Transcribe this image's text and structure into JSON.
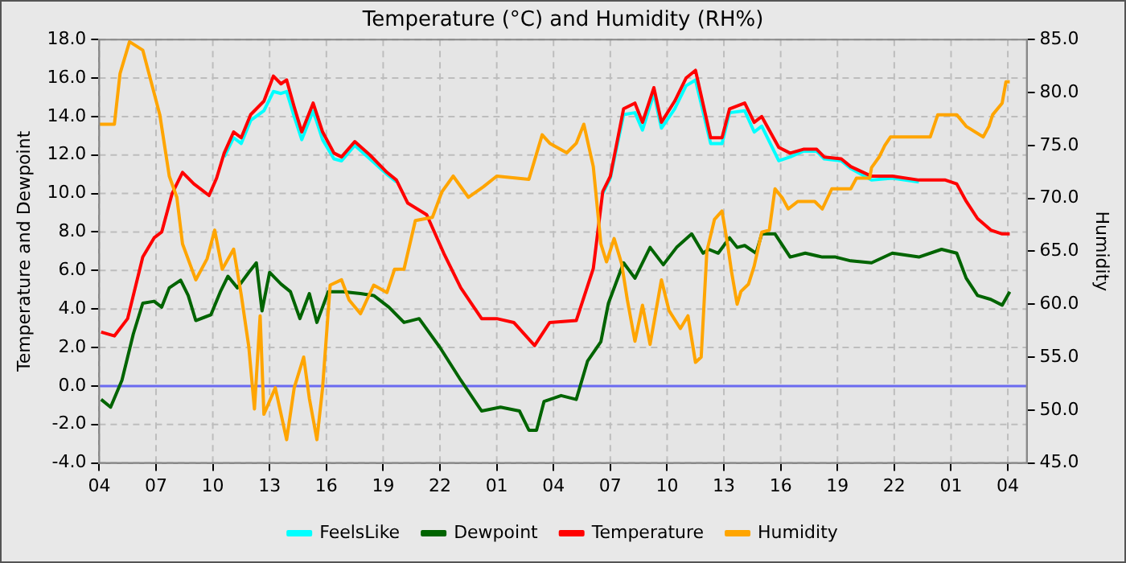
{
  "chart_data": {
    "type": "line",
    "title": "Temperature (°C) and Humidity (RH%)",
    "ylabel": "Temperature and Dewpoint",
    "y2label": "Humidity",
    "xlim": [
      "--01-01T04:00",
      "--01-03T05:00"
    ],
    "xticks": [
      {
        "value": "--01-01T04:00",
        "label": "04"
      },
      {
        "value": "--01-01T07:00",
        "label": "07"
      },
      {
        "value": "--01-01T10:00",
        "label": "10"
      },
      {
        "value": "--01-01T13:00",
        "label": "13"
      },
      {
        "value": "--01-01T16:00",
        "label": "16"
      },
      {
        "value": "--01-01T19:00",
        "label": "19"
      },
      {
        "value": "--01-01T22:00",
        "label": "22"
      },
      {
        "value": "--01-02T01:00",
        "label": "01"
      },
      {
        "value": "--01-02T04:00",
        "label": "04"
      },
      {
        "value": "--01-02T07:00",
        "label": "07"
      },
      {
        "value": "--01-02T10:00",
        "label": "10"
      },
      {
        "value": "--01-02T13:00",
        "label": "13"
      },
      {
        "value": "--01-02T16:00",
        "label": "16"
      },
      {
        "value": "--01-02T19:00",
        "label": "19"
      },
      {
        "value": "--01-02T22:00",
        "label": "22"
      },
      {
        "value": "--01-03T01:00",
        "label": "01"
      },
      {
        "value": "--01-03T04:00",
        "label": "04"
      }
    ],
    "x": [
      "--01-01T04:06",
      "--01-01T04:48",
      "--01-01T05:30",
      "--01-01T06:18",
      "--01-01T06:54",
      "--01-01T07:18",
      "--01-01T07:51",
      "--01-01T08:24",
      "--01-01T09:00",
      "--01-01T09:48",
      "--01-01T10:12",
      "--01-01T10:36",
      "--01-01T11:06",
      "--01-01T11:30",
      "--01-01T12:00",
      "--01-01T12:42",
      "--01-01T13:12",
      "--01-01T13:36",
      "--01-01T13:54",
      "--01-01T14:18",
      "--01-01T14:42",
      "--01-01T15:18",
      "--01-01T15:48",
      "--01-01T16:24",
      "--01-01T16:48",
      "--01-01T17:30",
      "--01-01T18:18",
      "--01-01T19:12",
      "--01-01T19:42",
      "--01-01T20:18",
      "--01-01T21:18",
      "--01-01T22:12",
      "--01-01T23:06",
      "--01-02T00:12",
      "--01-02T01:00",
      "--01-02T01:54",
      "--01-02T03:00",
      "--01-02T03:48",
      "--01-02T05:12",
      "--01-02T06:06",
      "--01-02T06:36",
      "--01-02T07:00",
      "--01-02T07:42",
      "--01-02T08:18",
      "--01-02T08:42",
      "--01-02T09:18",
      "--01-02T09:42",
      "--01-02T10:24",
      "--01-02T11:00",
      "--01-02T11:30",
      "--01-02T12:18",
      "--01-02T12:30",
      "--01-02T12:54",
      "--01-02T13:18",
      "--01-02T14:06",
      "--01-02T14:36",
      "--01-02T15:00",
      "--01-02T15:54",
      "--01-02T16:30",
      "--01-02T17:12",
      "--01-02T17:54",
      "--01-02T18:18",
      "--01-02T19:12",
      "--01-02T19:42",
      "--01-02T20:48",
      "--01-02T21:54",
      "--01-02T23:18",
      "--01-03T00:42",
      "--01-03T01:18",
      "--01-03T01:48",
      "--01-03T02:24",
      "--01-03T03:06",
      "--01-03T03:42",
      "--01-03T04:06"
    ],
    "ylim": [
      -4,
      18
    ],
    "yticks": [
      {
        "value": -4,
        "label": "-4.0"
      },
      {
        "value": -2,
        "label": "-2.0"
      },
      {
        "value": 0,
        "label": "0.0"
      },
      {
        "value": 2,
        "label": "2.0"
      },
      {
        "value": 4,
        "label": "4.0"
      },
      {
        "value": 6,
        "label": "6.0"
      },
      {
        "value": 8,
        "label": "8.0"
      },
      {
        "value": 10,
        "label": "10.0"
      },
      {
        "value": 12,
        "label": "12.0"
      },
      {
        "value": 14,
        "label": "14.0"
      },
      {
        "value": 16,
        "label": "16.0"
      },
      {
        "value": 18,
        "label": "18.0"
      }
    ],
    "y2lim": [
      45,
      85
    ],
    "y2ticks": [
      {
        "value": 45,
        "label": "45.0"
      },
      {
        "value": 50,
        "label": "50.0"
      },
      {
        "value": 55,
        "label": "55.0"
      },
      {
        "value": 60,
        "label": "60.0"
      },
      {
        "value": 65,
        "label": "65.0"
      },
      {
        "value": 70,
        "label": "70.0"
      },
      {
        "value": 75,
        "label": "75.0"
      },
      {
        "value": 80,
        "label": "80.0"
      },
      {
        "value": 85,
        "label": "85.0"
      }
    ],
    "grid": true,
    "legend": "bottom",
    "ref_lines": [
      {
        "axis": "y",
        "value": 0,
        "color": "#6a6af0"
      }
    ],
    "series": [
      {
        "name": "FeelsLike",
        "type": "line",
        "color": "#00ffff",
        "values": [
          null,
          null,
          null,
          null,
          null,
          null,
          null,
          null,
          null,
          null,
          null,
          11.9,
          12.9,
          12.6,
          13.8,
          14.3,
          15.3,
          15.2,
          15.3,
          14.0,
          12.8,
          14.3,
          12.8,
          11.8,
          11.7,
          12.5,
          11.8,
          11.0,
          10.6,
          null,
          null,
          null,
          null,
          null,
          null,
          null,
          null,
          null,
          null,
          null,
          10.0,
          10.8,
          14.1,
          14.2,
          13.3,
          15.2,
          13.4,
          14.4,
          15.6,
          15.9,
          12.6,
          12.6,
          12.6,
          14.2,
          14.3,
          13.2,
          13.5,
          11.7,
          11.9,
          12.2,
          12.2,
          11.8,
          11.7,
          11.3,
          10.7,
          10.8,
          10.6,
          null,
          null,
          null,
          null,
          null,
          null,
          null
        ]
      },
      {
        "name": "Dewpoint",
        "type": "line",
        "color": "#006400",
        "x": [
          "--01-01T04:06",
          "--01-01T04:36",
          "--01-01T05:12",
          "--01-01T05:48",
          "--01-01T06:18",
          "--01-01T06:54",
          "--01-01T07:18",
          "--01-01T07:42",
          "--01-01T08:18",
          "--01-01T08:42",
          "--01-01T09:06",
          "--01-01T09:54",
          "--01-01T10:24",
          "--01-01T10:48",
          "--01-01T11:18",
          "--01-01T11:54",
          "--01-01T12:18",
          "--01-01T12:36",
          "--01-01T13:00",
          "--01-01T13:36",
          "--01-01T14:06",
          "--01-01T14:36",
          "--01-01T15:06",
          "--01-01T15:30",
          "--01-01T16:06",
          "--01-01T16:54",
          "--01-01T17:48",
          "--01-01T18:30",
          "--01-01T19:18",
          "--01-01T20:06",
          "--01-01T20:54",
          "--01-01T22:00",
          "--01-01T23:06",
          "--01-02T00:12",
          "--01-02T01:12",
          "--01-02T02:12",
          "--01-02T02:42",
          "--01-02T03:06",
          "--01-02T03:30",
          "--01-02T04:24",
          "--01-02T05:12",
          "--01-02T05:48",
          "--01-02T06:30",
          "--01-02T06:54",
          "--01-02T07:42",
          "--01-02T08:18",
          "--01-02T09:06",
          "--01-02T09:48",
          "--01-02T10:30",
          "--01-02T11:18",
          "--01-02T11:54",
          "--01-02T12:12",
          "--01-02T12:42",
          "--01-02T13:18",
          "--01-02T13:42",
          "--01-02T14:06",
          "--01-02T14:42",
          "--01-02T15:00",
          "--01-02T15:42",
          "--01-02T16:30",
          "--01-02T17:18",
          "--01-02T18:12",
          "--01-02T18:54",
          "--01-02T19:42",
          "--01-02T20:48",
          "--01-02T21:54",
          "--01-02T23:18",
          "--01-03T00:30",
          "--01-03T01:18",
          "--01-03T01:48",
          "--01-03T02:24",
          "--01-03T03:06",
          "--01-03T03:42",
          "--01-03T04:06"
        ],
        "values": [
          -0.7,
          -1.1,
          0.3,
          2.7,
          4.3,
          4.4,
          4.1,
          5.1,
          5.5,
          4.7,
          3.4,
          3.7,
          4.9,
          5.7,
          5.1,
          5.9,
          6.4,
          3.9,
          5.9,
          5.3,
          4.9,
          3.5,
          4.8,
          3.3,
          4.9,
          4.9,
          4.8,
          4.7,
          4.1,
          3.3,
          3.5,
          2.0,
          0.3,
          -1.3,
          -1.1,
          -1.3,
          -2.3,
          -2.3,
          -0.8,
          -0.5,
          -0.7,
          1.3,
          2.3,
          4.3,
          6.4,
          5.6,
          7.2,
          6.3,
          7.2,
          7.9,
          6.9,
          7.1,
          6.9,
          7.7,
          7.2,
          7.3,
          6.9,
          7.9,
          7.9,
          6.7,
          6.9,
          6.7,
          6.7,
          6.5,
          6.4,
          6.9,
          6.7,
          7.1,
          6.9,
          5.6,
          4.7,
          4.5,
          4.2,
          4.9
        ]
      },
      {
        "name": "Temperature",
        "type": "line",
        "color": "#ff0000",
        "values": [
          2.8,
          2.6,
          3.5,
          6.7,
          7.7,
          8.0,
          10.0,
          11.1,
          10.5,
          9.9,
          10.8,
          12.1,
          13.2,
          12.9,
          14.1,
          14.8,
          16.1,
          15.7,
          15.9,
          14.5,
          13.2,
          14.7,
          13.2,
          12.1,
          11.9,
          12.7,
          12.0,
          11.1,
          10.7,
          9.5,
          8.9,
          6.9,
          5.1,
          3.5,
          3.5,
          3.3,
          2.1,
          3.3,
          3.4,
          6.1,
          10.1,
          10.9,
          14.4,
          14.7,
          13.7,
          15.5,
          13.7,
          14.8,
          16.0,
          16.4,
          12.9,
          12.9,
          12.9,
          14.4,
          14.7,
          13.7,
          14.0,
          12.4,
          12.1,
          12.3,
          12.3,
          11.9,
          11.8,
          11.4,
          10.9,
          10.9,
          10.7,
          10.7,
          10.5,
          9.6,
          8.7,
          8.1,
          7.9,
          7.9
        ]
      },
      {
        "name": "Humidity",
        "type": "line",
        "axis": "y2",
        "color": "#ffa500",
        "x": [
          "--01-01T04:00",
          "--01-01T04:48",
          "--01-01T05:06",
          "--01-01T05:36",
          "--01-01T06:18",
          "--01-01T06:42",
          "--01-01T07:12",
          "--01-01T07:42",
          "--01-01T08:06",
          "--01-01T08:24",
          "--01-01T09:06",
          "--01-01T09:42",
          "--01-01T10:06",
          "--01-01T10:30",
          "--01-01T11:06",
          "--01-01T11:30",
          "--01-01T11:54",
          "--01-01T12:12",
          "--01-01T12:30",
          "--01-01T12:42",
          "--01-01T13:18",
          "--01-01T13:54",
          "--01-01T14:18",
          "--01-01T14:48",
          "--01-01T15:06",
          "--01-01T15:30",
          "--01-01T15:48",
          "--01-01T16:12",
          "--01-01T16:48",
          "--01-01T17:12",
          "--01-01T17:48",
          "--01-01T18:30",
          "--01-01T19:12",
          "--01-01T19:36",
          "--01-01T20:06",
          "--01-01T20:42",
          "--01-01T21:36",
          "--01-01T22:06",
          "--01-01T22:42",
          "--01-01T23:30",
          "--01-02T00:18",
          "--01-02T01:00",
          "--01-02T02:42",
          "--01-02T03:24",
          "--01-02T03:48",
          "--01-02T04:42",
          "--01-02T05:12",
          "--01-02T05:36",
          "--01-02T06:06",
          "--01-02T06:30",
          "--01-02T06:48",
          "--01-02T07:12",
          "--01-02T07:36",
          "--01-02T07:54",
          "--01-02T08:18",
          "--01-02T08:42",
          "--01-02T09:06",
          "--01-02T09:42",
          "--01-02T10:06",
          "--01-02T10:42",
          "--01-02T11:06",
          "--01-02T11:30",
          "--01-02T11:48",
          "--01-02T12:06",
          "--01-02T12:30",
          "--01-02T12:54",
          "--01-02T13:12",
          "--01-02T13:24",
          "--01-02T13:42",
          "--01-02T13:54",
          "--01-02T14:18",
          "--01-02T14:36",
          "--01-02T15:00",
          "--01-02T15:24",
          "--01-02T15:42",
          "--01-02T16:06",
          "--01-02T16:24",
          "--01-02T16:54",
          "--01-02T17:48",
          "--01-02T18:12",
          "--01-02T18:42",
          "--01-02T19:42",
          "--01-02T20:00",
          "--01-02T20:42",
          "--01-02T20:48",
          "--01-02T21:12",
          "--01-02T21:30",
          "--01-02T21:48",
          "--01-02T23:54",
          "--01-03T00:18",
          "--01-03T01:18",
          "--01-03T01:48",
          "--01-03T02:42",
          "--01-03T03:00",
          "--01-03T03:12",
          "--01-03T03:42",
          "--01-03T03:54",
          "--01-03T04:06"
        ],
        "values": [
          77.0,
          77.0,
          81.8,
          84.8,
          84.0,
          81.3,
          77.9,
          72.1,
          70.1,
          65.7,
          62.3,
          64.3,
          67.0,
          63.3,
          65.2,
          60.9,
          56.0,
          50.1,
          58.9,
          49.6,
          52.1,
          47.2,
          52.1,
          55.0,
          51.1,
          47.2,
          52.1,
          61.8,
          62.3,
          60.4,
          59.1,
          61.8,
          61.1,
          63.3,
          63.3,
          67.9,
          68.2,
          70.6,
          72.1,
          70.1,
          71.1,
          72.1,
          71.8,
          76.0,
          75.2,
          74.3,
          75.2,
          77.0,
          73.0,
          65.7,
          64.0,
          66.2,
          63.8,
          60.4,
          56.5,
          59.9,
          56.2,
          62.3,
          59.4,
          57.7,
          58.9,
          54.5,
          55.0,
          65.0,
          68.0,
          68.8,
          65.6,
          63.1,
          60.0,
          61.2,
          61.9,
          63.6,
          66.8,
          67.0,
          70.9,
          70.0,
          69.0,
          69.7,
          69.7,
          69.0,
          70.9,
          70.9,
          71.9,
          71.9,
          72.9,
          73.9,
          75.0,
          75.8,
          75.8,
          77.9,
          77.9,
          76.8,
          75.8,
          76.8,
          77.9,
          79.0,
          81.0,
          81.0
        ]
      }
    ]
  }
}
